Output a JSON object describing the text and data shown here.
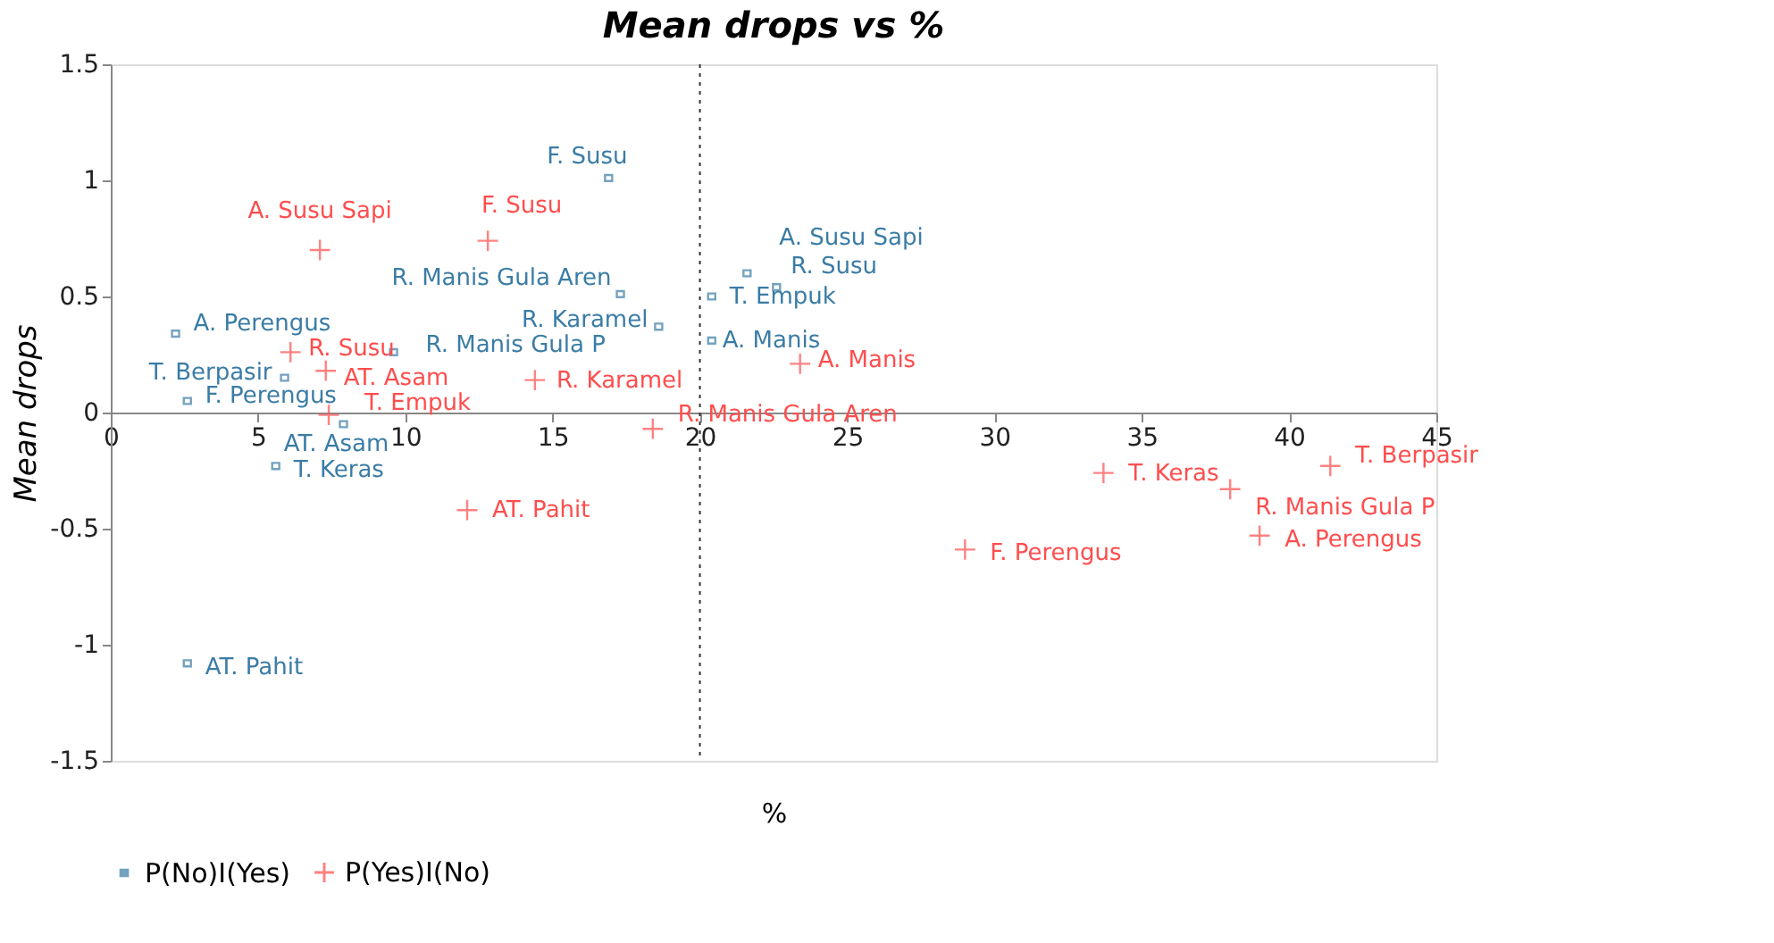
{
  "chart_data": {
    "type": "scatter",
    "title": "Mean drops vs %",
    "xlabel": "%",
    "ylabel": "Mean drops",
    "xlim": [
      0,
      45
    ],
    "xticks": [
      0,
      5,
      10,
      15,
      20,
      25,
      30,
      35,
      40,
      45
    ],
    "ylim": [
      -1.5,
      1.5
    ],
    "yticks": [
      -1.5,
      {
        "value": -1,
        "label": "-1"
      },
      -0.5,
      {
        "value": 0,
        "label": "0"
      },
      0.5,
      {
        "value": 1,
        "label": "1"
      },
      1.5
    ],
    "grid": false,
    "legend": "bottom",
    "ref_lines": [
      {
        "axis": "x",
        "value": 20,
        "line_style": "dotted",
        "color": "#333333"
      }
    ],
    "series": [
      {
        "name": "P(No)I(Yes)",
        "color": "#3a7ca5",
        "marker": "square",
        "x": [
          16.9,
          17.3,
          18.6,
          2.2,
          21.6,
          22.6,
          20.4,
          20.4,
          9.6,
          5.9,
          2.6,
          7.9,
          5.6,
          2.6
        ],
        "values": [
          1.01,
          0.51,
          0.37,
          0.34,
          0.6,
          0.54,
          0.5,
          0.31,
          0.26,
          0.15,
          0.05,
          -0.05,
          -0.23,
          -1.08
        ],
        "value_labels": [
          "F. Susu",
          "R. Manis Gula Aren",
          "R. Karamel",
          "A. Perengus",
          "A. Susu Sapi",
          "R. Susu",
          "T. Empuk",
          "A. Manis",
          "R. Manis Gula P",
          "T. Berpasir",
          "F. Perengus",
          "AT. Asam",
          "T. Keras",
          "AT. Pahit"
        ]
      },
      {
        "name": "P(Yes)I(No)",
        "color": "#ff4d4d",
        "marker": "cross",
        "x": [
          7.1,
          12.8,
          6.1,
          7.3,
          14.4,
          7.4,
          18.4,
          23.4,
          12.1,
          33.7,
          38.0,
          41.4,
          39.0,
          29.0
        ],
        "values": [
          0.7,
          0.74,
          0.26,
          0.18,
          0.14,
          -0.01,
          -0.07,
          0.21,
          -0.42,
          -0.26,
          -0.33,
          -0.23,
          -0.53,
          -0.59
        ],
        "value_labels": [
          "A. Susu Sapi",
          "F. Susu",
          "R. Susu",
          "AT. Asam",
          "R. Karamel",
          "T. Empuk",
          "R. Manis Gula Aren",
          "A. Manis",
          "AT. Pahit",
          "T. Keras",
          "R. Manis Gula P",
          "T. Berpasir",
          "A. Perengus",
          "F. Perengus"
        ]
      }
    ]
  }
}
